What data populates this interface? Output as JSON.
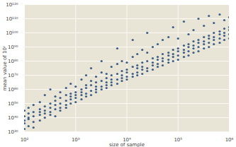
{
  "chart_data": {
    "type": "scatter",
    "xlabel": "size of sample",
    "ylabel": "mean value of 10ᶻ",
    "log": true,
    "grid": true,
    "color": "#3d5f87",
    "marker": "circle",
    "xlim": [
      100,
      1000000
    ],
    "ylim": [
      1e+30,
      1e+120
    ],
    "xticks": [
      {
        "value": 100,
        "label": "10²"
      },
      {
        "value": 1000,
        "label": "10³"
      },
      {
        "value": 10000,
        "label": "10⁴"
      },
      {
        "value": 100000,
        "label": "10⁵"
      },
      {
        "value": 1000000,
        "label": "10⁶"
      }
    ],
    "yticks": [
      {
        "value": 1e+30,
        "label": "10³⁰"
      },
      {
        "value": 1e+40,
        "label": "10⁴⁰"
      },
      {
        "value": 1e+50,
        "label": "10⁵⁰"
      },
      {
        "value": 1e+60,
        "label": "10⁶⁰"
      },
      {
        "value": 1e+70,
        "label": "10⁷⁰"
      },
      {
        "value": 1e+80,
        "label": "10⁸⁰"
      },
      {
        "value": 1e+90,
        "label": "10⁹⁰"
      },
      {
        "value": 1e+100,
        "label": "10¹⁰⁰"
      },
      {
        "value": 1e+110,
        "label": "10¹¹⁰"
      },
      {
        "value": 1e+120,
        "label": "10¹²⁰"
      }
    ],
    "x": [
      100,
      100,
      100,
      100,
      100,
      120,
      120,
      120,
      120,
      120,
      150,
      150,
      150,
      150,
      150,
      200,
      200,
      200,
      200,
      200,
      250,
      250,
      250,
      250,
      250,
      320,
      320,
      320,
      320,
      320,
      400,
      400,
      400,
      400,
      400,
      500,
      500,
      500,
      500,
      500,
      650,
      650,
      650,
      650,
      650,
      800,
      800,
      800,
      800,
      800,
      1000,
      1000,
      1000,
      1000,
      1000,
      1300,
      1300,
      1300,
      1300,
      1300,
      1600,
      1600,
      1600,
      1600,
      1600,
      2000,
      2000,
      2000,
      2000,
      2000,
      2500,
      2500,
      2500,
      2500,
      2500,
      3200,
      3200,
      3200,
      3200,
      3200,
      4000,
      4000,
      4000,
      4000,
      4000,
      5000,
      5000,
      5000,
      5000,
      5000,
      6500,
      6500,
      6500,
      6500,
      6500,
      8000,
      8000,
      8000,
      8000,
      8000,
      10000,
      10000,
      10000,
      10000,
      10000,
      13000,
      13000,
      13000,
      13000,
      13000,
      16000,
      16000,
      16000,
      16000,
      16000,
      20000,
      20000,
      20000,
      20000,
      20000,
      25000,
      25000,
      25000,
      25000,
      25000,
      32000,
      32000,
      32000,
      32000,
      32000,
      40000,
      40000,
      40000,
      40000,
      40000,
      50000,
      50000,
      50000,
      50000,
      50000,
      65000,
      65000,
      65000,
      65000,
      65000,
      80000,
      80000,
      80000,
      80000,
      80000,
      100000,
      100000,
      100000,
      100000,
      100000,
      130000,
      130000,
      130000,
      130000,
      130000,
      160000,
      160000,
      160000,
      160000,
      160000,
      200000,
      200000,
      200000,
      200000,
      200000,
      250000,
      250000,
      250000,
      250000,
      250000,
      320000,
      320000,
      320000,
      320000,
      320000,
      400000,
      400000,
      400000,
      400000,
      400000,
      500000,
      500000,
      500000,
      500000,
      500000,
      650000,
      650000,
      650000,
      650000,
      650000,
      800000,
      800000,
      800000,
      800000,
      800000,
      1000000,
      1000000,
      1000000,
      1000000,
      1000000
    ],
    "y": [
      1e+32,
      1e+38,
      1e+41,
      1e+45,
      1e+36,
      1e+40,
      1e+43,
      1e+34,
      1e+47,
      1e+39,
      1e+37,
      1e+44,
      1e+49,
      1e+41,
      1e+33,
      1e+42,
      1e+46,
      1e+38,
      1e+51,
      1e+44,
      1e+45,
      1e+40,
      1e+48,
      1e+56,
      1e+43,
      1e+47,
      1e+42,
      1e+50,
      1e+44,
      1e+60,
      1e+46,
      1e+52,
      1e+49,
      1e+41,
      1e+55,
      1e+50,
      1e+47,
      1e+54,
      1e+58,
      1e+45,
      1e+52,
      1e+49,
      1e+56,
      1e+61,
      1e+47,
      1e+53,
      1e+57,
      1e+50,
      1e+64,
      1e+55,
      1e+54,
      1e+58,
      1e+51,
      1e+62,
      1e+56,
      1e+56,
      1e+60,
      1e+53,
      1e+67,
      1e+58,
      1e+57,
      1e+61,
      1e+55,
      1e+70,
      1e+63,
      1e+59,
      1e+63,
      1e+56,
      1e+66,
      1e+75,
      1e+60,
      1e+65,
      1e+58,
      1e+69,
      1e+62,
      1e+62,
      1e+66,
      1e+60,
      1e+72,
      1e+80,
      1e+63,
      1e+68,
      1e+61,
      1e+71,
      1e+65,
      1e+65,
      1e+70,
      1e+63,
      1e+76,
      1e+67,
      1e+67,
      1e+71,
      1e+64,
      1e+78,
      1e+89,
      1e+68,
      1e+73,
      1e+66,
      1e+80,
      1e+70,
      1e+69,
      1e+74,
      1e+67,
      1e+79,
      1e+72,
      1e+71,
      1e+76,
      1e+69,
      1e+83,
      1e+95,
      1e+72,
      1e+77,
      1e+70,
      1e+85,
      1e+75,
      1e+74,
      1e+79,
      1e+71,
      1e+88,
      1e+76,
      1e+75,
      1e+80,
      1e+73,
      1e+86,
      1e+100,
      1e+77,
      1e+82,
      1e+74,
      1e+90,
      1e+79,
      1e+78,
      1e+83,
      1e+76,
      1e+92,
      1e+81,
      1e+80,
      1e+85,
      1e+77,
      1e+95,
      1e+82,
      1e+81,
      1e+86,
      1e+79,
      1e+97,
      1e+84,
      1e+83,
      1e+88,
      1e+80,
      1e+104,
      1e+85,
      1e+84,
      1e+89,
      1e+81,
      1e+96,
      1e+87,
      1e+86,
      1e+91,
      1e+83,
      1e+108,
      1e+88,
      1e+87,
      1e+92,
      1e+84,
      1e+99,
      1e+90,
      1e+89,
      1e+94,
      1e+86,
      1e+102,
      1e+91,
      1e+90,
      1e+95,
      1e+87,
      1e+110,
      1e+93,
      1e+92,
      1e+97,
      1e+89,
      1e+105,
      1e+94,
      1e+93,
      1e+98,
      1e+90,
      1e+112,
      1e+96,
      1e+95,
      1e+100,
      1e+92,
      1e+107,
      1e+97,
      1e+96,
      1e+101,
      1e+93,
      1e+113,
      1e+99,
      1e+98,
      1e+103,
      1e+95,
      1e+109,
      1e+100,
      1e+99,
      1e+104,
      1e+96,
      1e+111,
      1e+102
    ]
  }
}
